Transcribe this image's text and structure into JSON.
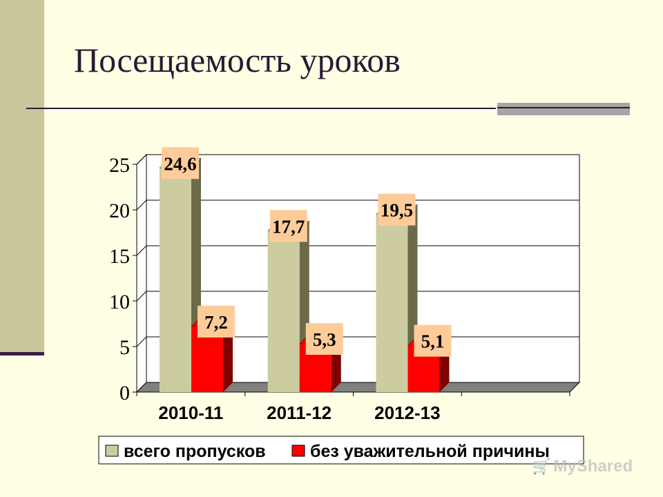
{
  "slide": {
    "title": "Посещаемость уроков",
    "watermark": "MyShared",
    "watermark_icon": "cart-icon"
  },
  "colors": {
    "background": "#ffffe5",
    "side_bar": "#c8c79c",
    "title": "#2a1935",
    "series_total": "#cccca0",
    "series_total_side": "#6b6b4a",
    "series_unexcused": "#ff0000",
    "series_unexcused_side": "#800000",
    "data_label_bg": "#ffcc99"
  },
  "chart_data": {
    "type": "bar",
    "categories": [
      "2010-11",
      "2011-12",
      "2012-13"
    ],
    "series": [
      {
        "name": "всего пропусков",
        "values": [
          24.6,
          17.7,
          19.5
        ],
        "labels": [
          "24,6",
          "17,7",
          "19,5"
        ]
      },
      {
        "name": "без уважительной причины",
        "values": [
          7.2,
          5.3,
          5.1
        ],
        "labels": [
          "7,2",
          "5,3",
          "5,1"
        ]
      }
    ],
    "y_ticks": [
      "0",
      "5",
      "10",
      "15",
      "20",
      "25"
    ],
    "ylim": [
      0,
      25
    ],
    "grid": true,
    "legend_position": "bottom",
    "style": "3d-clustered-column"
  }
}
